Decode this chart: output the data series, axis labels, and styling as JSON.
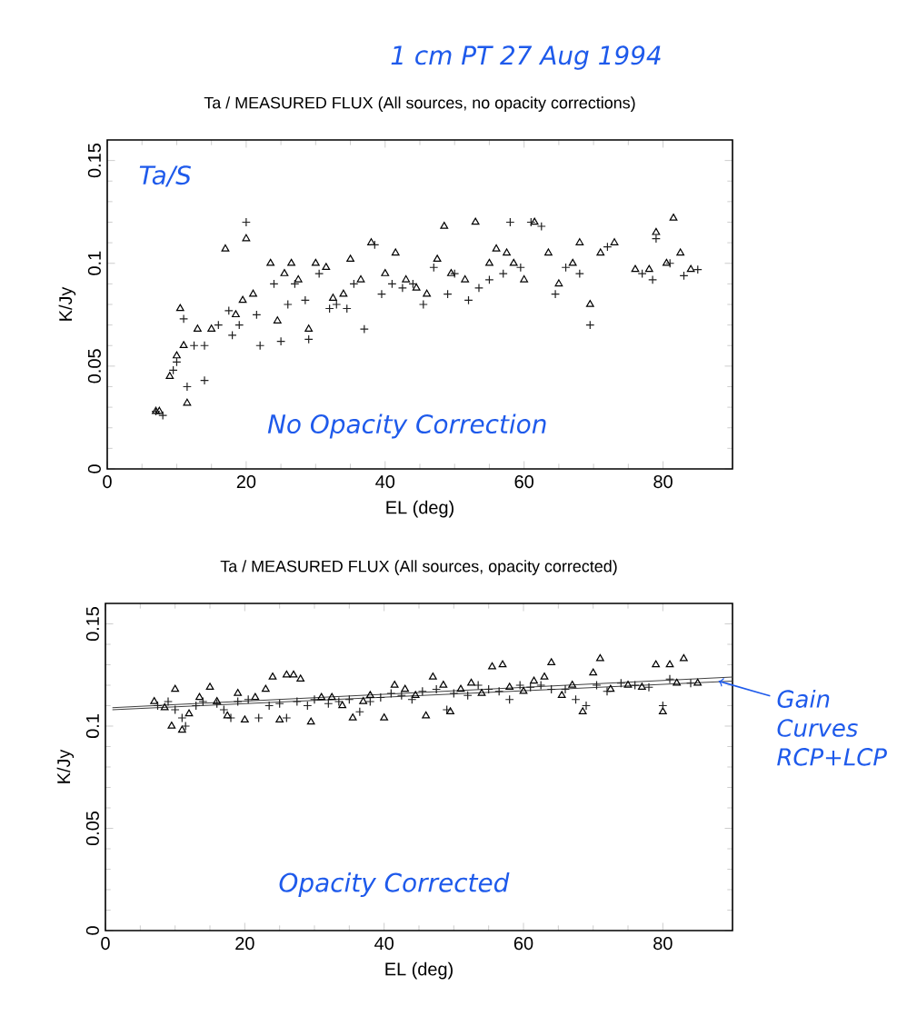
{
  "chart_data": [
    {
      "type": "scatter",
      "title": "Ta / MEASURED FLUX (All sources, no opacity corrections)",
      "xlabel": "EL (deg)",
      "ylabel": "K/Jy",
      "xlim": [
        0,
        90
      ],
      "ylim": [
        0,
        0.16
      ],
      "xticks": [
        0,
        20,
        40,
        60,
        80
      ],
      "yticks": [
        0,
        0.05,
        0.1,
        0.15
      ],
      "annotations": [
        "1 cm  PT  27 Aug 1994",
        "Ta/S",
        "No Opacity Correction"
      ],
      "series": [
        {
          "marker": "triangle",
          "color": "#000000",
          "x": [
            7,
            7.5,
            9,
            10,
            10.5,
            11,
            11.5,
            13,
            15,
            17,
            18.5,
            19.5,
            20,
            21,
            23.5,
            24.5,
            25.5,
            26.5,
            27.5,
            29,
            30,
            31.5,
            32.5,
            34,
            35,
            36.5,
            38,
            40,
            41.5,
            43,
            44.5,
            46,
            47.5,
            48.5,
            49.5,
            51.5,
            53,
            55,
            56,
            57.5,
            58.5,
            60,
            61.5,
            63.5,
            65,
            67,
            68,
            69.5,
            71,
            73,
            76,
            78,
            79,
            80.5,
            81.5,
            82.5,
            84
          ],
          "values": [
            0.028,
            0.028,
            0.045,
            0.055,
            0.078,
            0.06,
            0.032,
            0.068,
            0.068,
            0.107,
            0.075,
            0.082,
            0.112,
            0.085,
            0.1,
            0.072,
            0.095,
            0.1,
            0.092,
            0.068,
            0.1,
            0.098,
            0.083,
            0.085,
            0.102,
            0.092,
            0.11,
            0.095,
            0.105,
            0.092,
            0.088,
            0.085,
            0.102,
            0.118,
            0.095,
            0.092,
            0.12,
            0.1,
            0.107,
            0.105,
            0.1,
            0.092,
            0.12,
            0.105,
            0.09,
            0.1,
            0.11,
            0.08,
            0.105,
            0.11,
            0.097,
            0.097,
            0.115,
            0.1,
            0.122,
            0.105,
            0.097
          ]
        },
        {
          "marker": "cross",
          "color": "#202020",
          "x": [
            7,
            8,
            9.5,
            10,
            11,
            11.5,
            12.5,
            14,
            14,
            16,
            17.5,
            18,
            19,
            20,
            21.5,
            22,
            24,
            25,
            26,
            27,
            28.5,
            29,
            30.5,
            32,
            33,
            34.5,
            35.5,
            37,
            38.5,
            39.5,
            41,
            42.5,
            44,
            45.5,
            47,
            49,
            50,
            52,
            53.5,
            55,
            57,
            58,
            59.5,
            61,
            62.5,
            64.5,
            66,
            68,
            69.5,
            72,
            77,
            78.5,
            79,
            81,
            83,
            85
          ],
          "values": [
            0.028,
            0.026,
            0.048,
            0.052,
            0.073,
            0.04,
            0.06,
            0.043,
            0.06,
            0.07,
            0.077,
            0.065,
            0.07,
            0.12,
            0.075,
            0.06,
            0.09,
            0.062,
            0.08,
            0.09,
            0.082,
            0.063,
            0.095,
            0.078,
            0.08,
            0.078,
            0.09,
            0.068,
            0.109,
            0.085,
            0.09,
            0.088,
            0.09,
            0.08,
            0.098,
            0.085,
            0.095,
            0.082,
            0.088,
            0.092,
            0.095,
            0.12,
            0.098,
            0.12,
            0.118,
            0.085,
            0.098,
            0.095,
            0.07,
            0.108,
            0.095,
            0.092,
            0.112,
            0.1,
            0.094,
            0.097
          ]
        }
      ]
    },
    {
      "type": "scatter",
      "title": "Ta / MEASURED FLUX (All sources, opacity corrected)",
      "xlabel": "EL (deg)",
      "ylabel": "K/Jy",
      "xlim": [
        0,
        90
      ],
      "ylim": [
        0,
        0.16
      ],
      "xticks": [
        0,
        20,
        40,
        60,
        80
      ],
      "yticks": [
        0,
        0.05,
        0.1,
        0.15
      ],
      "annotations": [
        "Opacity Corrected",
        {
          "text": "Gain Curves RCP+LCP",
          "x": 88,
          "y": 0.122
        }
      ],
      "series": [
        {
          "type": "line",
          "color": "#404040",
          "x": [
            1,
            90
          ],
          "values": [
            0.108,
            0.122
          ]
        },
        {
          "type": "line",
          "color": "#404040",
          "x": [
            1,
            90
          ],
          "values": [
            0.109,
            0.124
          ]
        },
        {
          "marker": "triangle",
          "color": "#000000",
          "x": [
            7,
            8.5,
            9.5,
            10,
            11,
            12,
            13.5,
            15,
            16,
            17.5,
            19,
            20,
            21.5,
            23,
            24,
            25,
            26,
            27,
            28,
            29.5,
            31,
            32.5,
            34,
            35.5,
            37,
            38,
            40,
            41.5,
            43,
            44.5,
            46,
            47,
            48.5,
            49.5,
            51,
            52.5,
            54,
            55.5,
            57,
            58,
            60,
            61.5,
            63,
            64,
            65.5,
            67,
            68.5,
            70,
            71,
            72.5,
            75,
            77,
            79,
            80,
            81,
            82,
            83,
            85
          ],
          "values": [
            0.112,
            0.109,
            0.1,
            0.118,
            0.098,
            0.106,
            0.114,
            0.119,
            0.112,
            0.105,
            0.116,
            0.103,
            0.114,
            0.118,
            0.124,
            0.103,
            0.125,
            0.125,
            0.123,
            0.102,
            0.114,
            0.114,
            0.11,
            0.104,
            0.112,
            0.115,
            0.104,
            0.12,
            0.118,
            0.115,
            0.105,
            0.124,
            0.12,
            0.107,
            0.118,
            0.121,
            0.116,
            0.129,
            0.13,
            0.119,
            0.117,
            0.122,
            0.124,
            0.131,
            0.115,
            0.12,
            0.107,
            0.126,
            0.133,
            0.118,
            0.12,
            0.119,
            0.13,
            0.107,
            0.13,
            0.121,
            0.133,
            0.121
          ]
        },
        {
          "marker": "cross",
          "color": "#202020",
          "x": [
            7.5,
            9,
            10,
            11,
            11.5,
            13,
            14,
            16,
            17,
            18,
            19,
            20.5,
            22,
            23.5,
            25,
            26,
            27.5,
            29,
            30,
            32,
            33.5,
            35,
            36.5,
            38,
            39.5,
            41,
            42.5,
            44,
            45.5,
            47.5,
            49,
            50,
            52,
            53.5,
            55,
            56.5,
            58,
            59.5,
            61,
            62.5,
            64,
            66,
            67.5,
            69,
            70.5,
            72,
            74,
            76,
            78,
            80,
            81,
            84
          ],
          "values": [
            0.11,
            0.112,
            0.108,
            0.104,
            0.1,
            0.11,
            0.112,
            0.111,
            0.108,
            0.104,
            0.112,
            0.113,
            0.104,
            0.11,
            0.111,
            0.104,
            0.112,
            0.11,
            0.113,
            0.111,
            0.112,
            0.113,
            0.107,
            0.112,
            0.114,
            0.116,
            0.115,
            0.113,
            0.117,
            0.118,
            0.108,
            0.116,
            0.115,
            0.12,
            0.118,
            0.117,
            0.113,
            0.12,
            0.119,
            0.12,
            0.118,
            0.118,
            0.113,
            0.11,
            0.12,
            0.117,
            0.121,
            0.12,
            0.119,
            0.11,
            0.123,
            0.121
          ]
        }
      ]
    }
  ]
}
